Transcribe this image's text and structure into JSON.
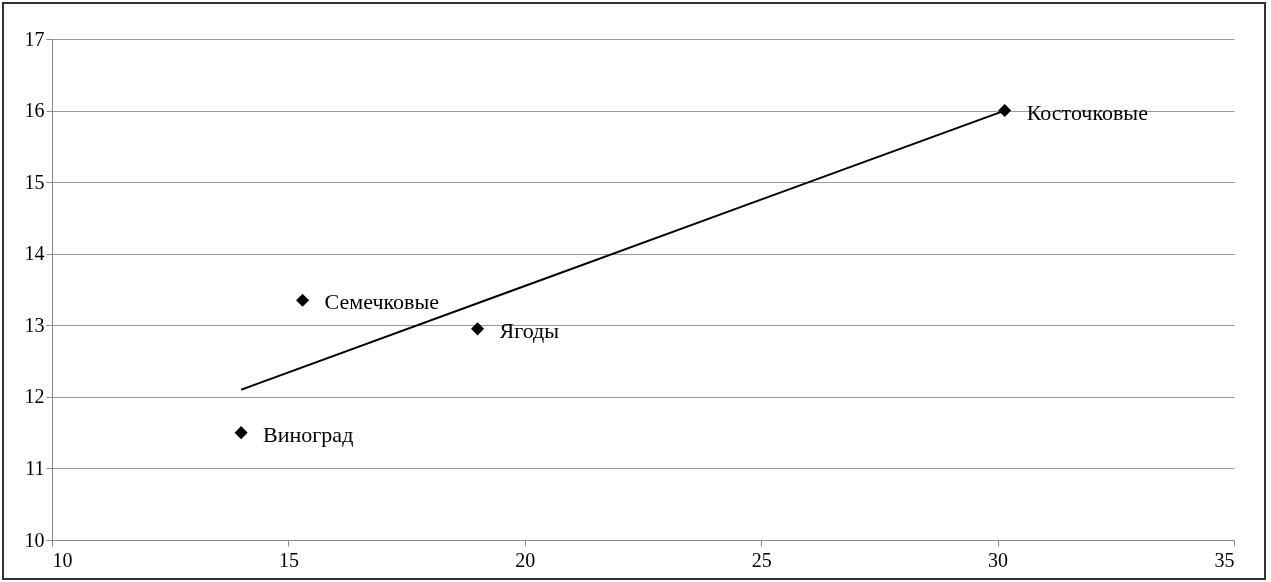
{
  "chart_data": {
    "type": "scatter",
    "xlim": [
      10,
      35
    ],
    "xticks": [
      10,
      15,
      20,
      25,
      30,
      35
    ],
    "ylim": [
      10,
      17
    ],
    "yticks": [
      10,
      11,
      12,
      13,
      14,
      15,
      16,
      17
    ],
    "grid": "y",
    "marker": "diamond",
    "series": [
      {
        "color": "#000000",
        "x": [
          14.0,
          15.3,
          19.0,
          30.15
        ],
        "values": [
          11.5,
          13.35,
          12.95,
          16.0
        ]
      },
      {
        "type": "line",
        "color": "#000000",
        "line_style": "solid",
        "marker": "none",
        "x": [
          14.0,
          30.15
        ],
        "values": [
          12.1,
          16.0
        ]
      }
    ],
    "annotations": [
      {
        "text": "Виноград",
        "x": 14.0,
        "y": 11.5
      },
      {
        "text": "Семечковые",
        "x": 15.3,
        "y": 13.35
      },
      {
        "text": "Ягоды",
        "x": 19.0,
        "y": 12.95
      },
      {
        "text": "Косточковые",
        "x": 30.15,
        "y": 16.0
      }
    ]
  }
}
